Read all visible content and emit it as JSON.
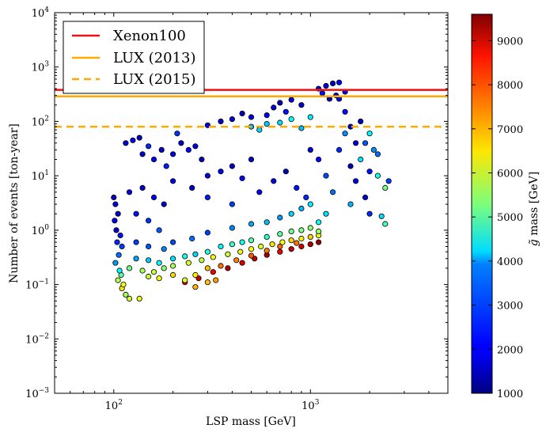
{
  "chart_data": {
    "type": "scatter",
    "title": "",
    "xlabel": "LSP mass [GeV]",
    "ylabel": "Number of events [ton-year]",
    "xscale": "log",
    "yscale": "log",
    "xlim": [
      50,
      5000
    ],
    "ylim": [
      0.001,
      10000
    ],
    "x_ticks": [
      {
        "value": 100,
        "base": "10",
        "exp": "2"
      },
      {
        "value": 1000,
        "base": "10",
        "exp": "3"
      }
    ],
    "y_ticks": [
      {
        "value": 0.001,
        "base": "10",
        "exp": "−3"
      },
      {
        "value": 0.01,
        "base": "10",
        "exp": "−2"
      },
      {
        "value": 0.1,
        "base": "10",
        "exp": "−1"
      },
      {
        "value": 1,
        "base": "10",
        "exp": "0"
      },
      {
        "value": 10,
        "base": "10",
        "exp": "1"
      },
      {
        "value": 100,
        "base": "10",
        "exp": "2"
      },
      {
        "value": 1000,
        "base": "10",
        "exp": "3"
      },
      {
        "value": 10000,
        "base": "10",
        "exp": "4"
      }
    ],
    "limit_lines": [
      {
        "name": "Xenon100",
        "value": 380,
        "color": "#ee1111",
        "style": "solid"
      },
      {
        "name": "LUX (2013)",
        "value": 290,
        "color": "#ffaa00",
        "style": "solid"
      },
      {
        "name": "LUX (2015)",
        "value": 80,
        "color": "#ffaa00",
        "style": "dashed"
      }
    ],
    "legend_location": "upper-left",
    "colorbar": {
      "label_symbol": "g̃",
      "label_rest": " mass [GeV]",
      "min": 1000,
      "max": 9600,
      "ticks": [
        1000,
        2000,
        3000,
        4000,
        5000,
        6000,
        7000,
        8000,
        9000
      ],
      "colormap": "jet"
    },
    "series": [
      {
        "name": "scan points",
        "columns": [
          "lsp_mass_gev",
          "events_ton_year",
          "gluino_mass_gev"
        ],
        "points": [
          [
            1100,
            400,
            1500
          ],
          [
            1200,
            450,
            1800
          ],
          [
            1300,
            500,
            1600
          ],
          [
            1400,
            520,
            2100
          ],
          [
            1350,
            300,
            1700
          ],
          [
            1150,
            330,
            2200
          ],
          [
            1250,
            260,
            1500
          ],
          [
            1500,
            350,
            1900
          ],
          [
            1400,
            260,
            2000
          ],
          [
            900,
            200,
            1600
          ],
          [
            800,
            250,
            1800
          ],
          [
            700,
            220,
            1500
          ],
          [
            750,
            150,
            2200
          ],
          [
            650,
            180,
            1700
          ],
          [
            600,
            130,
            2000
          ],
          [
            500,
            120,
            1800
          ],
          [
            450,
            140,
            1500
          ],
          [
            400,
            110,
            1700
          ],
          [
            350,
            100,
            1600
          ],
          [
            300,
            85,
            1900
          ],
          [
            600,
            90,
            3800
          ],
          [
            700,
            95,
            4000
          ],
          [
            500,
            80,
            3600
          ],
          [
            550,
            70,
            3900
          ],
          [
            800,
            110,
            4200
          ],
          [
            1000,
            120,
            4100
          ],
          [
            900,
            75,
            3700
          ],
          [
            2000,
            60,
            4200
          ],
          [
            2100,
            30,
            3300
          ],
          [
            2200,
            10,
            4400
          ],
          [
            2400,
            6,
            5200
          ],
          [
            2400,
            1.3,
            4800
          ],
          [
            2300,
            1.8,
            3900
          ],
          [
            2500,
            8,
            2600
          ],
          [
            2200,
            25,
            3000
          ],
          [
            1900,
            40,
            2800
          ],
          [
            1800,
            20,
            4000
          ],
          [
            2000,
            12,
            2200
          ],
          [
            1500,
            150,
            2200
          ],
          [
            1600,
            80,
            1600
          ],
          [
            1700,
            40,
            1800
          ],
          [
            1800,
            100,
            1500
          ],
          [
            1500,
            60,
            3300
          ],
          [
            1400,
            30,
            2400
          ],
          [
            1600,
            15,
            1600
          ],
          [
            1700,
            8,
            2000
          ],
          [
            1900,
            4,
            1700
          ],
          [
            2000,
            2,
            2400
          ],
          [
            1300,
            5,
            3000
          ],
          [
            1200,
            10,
            2700
          ],
          [
            1100,
            20,
            2100
          ],
          [
            1000,
            30,
            1800
          ],
          [
            1600,
            3,
            3600
          ],
          [
            1200,
            2,
            4000
          ],
          [
            100,
            4,
            1500
          ],
          [
            102,
            3,
            1800
          ],
          [
            105,
            2,
            1600
          ],
          [
            101,
            1.5,
            2000
          ],
          [
            103,
            1,
            1700
          ],
          [
            108,
            0.8,
            2200
          ],
          [
            110,
            0.5,
            2600
          ],
          [
            104,
            0.6,
            2400
          ],
          [
            106,
            0.35,
            3000
          ],
          [
            102,
            0.25,
            3400
          ],
          [
            107,
            0.18,
            4200
          ],
          [
            109,
            0.15,
            5000
          ],
          [
            105,
            0.12,
            5800
          ],
          [
            112,
            0.1,
            6200
          ],
          [
            110,
            0.085,
            6600
          ],
          [
            115,
            0.065,
            5600
          ],
          [
            120,
            0.055,
            6000
          ],
          [
            135,
            0.055,
            6200
          ],
          [
            120,
            5,
            1800
          ],
          [
            140,
            6,
            1600
          ],
          [
            160,
            4,
            2000
          ],
          [
            180,
            3,
            1700
          ],
          [
            130,
            2,
            2200
          ],
          [
            150,
            1.5,
            2500
          ],
          [
            170,
            1,
            2800
          ],
          [
            200,
            8,
            1900
          ],
          [
            250,
            6,
            1600
          ],
          [
            300,
            10,
            1800
          ],
          [
            350,
            12,
            2000
          ],
          [
            400,
            15,
            1700
          ],
          [
            450,
            9,
            2100
          ],
          [
            500,
            20,
            1600
          ],
          [
            300,
            4,
            2300
          ],
          [
            400,
            3,
            2600
          ],
          [
            550,
            5,
            2000
          ],
          [
            650,
            8,
            1800
          ],
          [
            750,
            12,
            1500
          ],
          [
            850,
            6,
            2200
          ],
          [
            950,
            4,
            2400
          ],
          [
            115,
            40,
            1800
          ],
          [
            125,
            45,
            2100
          ],
          [
            135,
            50,
            1500
          ],
          [
            150,
            35,
            2400
          ],
          [
            140,
            25,
            1700
          ],
          [
            160,
            20,
            2000
          ],
          [
            175,
            30,
            1600
          ],
          [
            185,
            15,
            2300
          ],
          [
            200,
            25,
            1900
          ],
          [
            220,
            40,
            1600
          ],
          [
            240,
            30,
            2100
          ],
          [
            260,
            35,
            1800
          ],
          [
            280,
            20,
            1500
          ],
          [
            210,
            60,
            2500
          ],
          [
            130,
            0.6,
            2600
          ],
          [
            150,
            0.5,
            2800
          ],
          [
            180,
            0.45,
            3200
          ],
          [
            200,
            0.6,
            2700
          ],
          [
            250,
            0.7,
            3000
          ],
          [
            300,
            0.9,
            2600
          ],
          [
            400,
            1.1,
            3200
          ],
          [
            500,
            1.3,
            3500
          ],
          [
            600,
            1.4,
            3700
          ],
          [
            700,
            1.7,
            3400
          ],
          [
            800,
            2,
            3900
          ],
          [
            900,
            2.5,
            3600
          ],
          [
            1000,
            3,
            4100
          ],
          [
            1100,
            1.4,
            4300
          ],
          [
            130,
            0.3,
            3500
          ],
          [
            150,
            0.28,
            3800
          ],
          [
            170,
            0.25,
            4200
          ],
          [
            200,
            0.3,
            4000
          ],
          [
            230,
            0.33,
            4400
          ],
          [
            260,
            0.36,
            3900
          ],
          [
            300,
            0.4,
            4500
          ],
          [
            350,
            0.5,
            4200
          ],
          [
            400,
            0.55,
            4700
          ],
          [
            450,
            0.6,
            4400
          ],
          [
            500,
            0.65,
            4900
          ],
          [
            600,
            0.75,
            4600
          ],
          [
            700,
            0.85,
            5000
          ],
          [
            800,
            0.95,
            5200
          ],
          [
            900,
            1,
            5300
          ],
          [
            1000,
            1.1,
            5400
          ],
          [
            1100,
            0.95,
            5500
          ],
          [
            120,
            0.2,
            5200
          ],
          [
            140,
            0.18,
            5600
          ],
          [
            160,
            0.17,
            5900
          ],
          [
            180,
            0.2,
            5400
          ],
          [
            200,
            0.22,
            5700
          ],
          [
            240,
            0.25,
            6100
          ],
          [
            280,
            0.28,
            5800
          ],
          [
            320,
            0.32,
            6300
          ],
          [
            380,
            0.36,
            6000
          ],
          [
            440,
            0.4,
            6200
          ],
          [
            500,
            0.45,
            6400
          ],
          [
            560,
            0.5,
            6100
          ],
          [
            640,
            0.55,
            6600
          ],
          [
            720,
            0.6,
            6300
          ],
          [
            800,
            0.65,
            6700
          ],
          [
            900,
            0.7,
            6500
          ],
          [
            1000,
            0.75,
            6800
          ],
          [
            1100,
            0.8,
            6200
          ],
          [
            150,
            0.14,
            5900
          ],
          [
            170,
            0.13,
            6300
          ],
          [
            200,
            0.15,
            6700
          ],
          [
            230,
            0.12,
            6100
          ],
          [
            260,
            0.15,
            6500
          ],
          [
            300,
            0.2,
            6900
          ],
          [
            230,
            0.11,
            8700
          ],
          [
            270,
            0.13,
            9000
          ],
          [
            320,
            0.17,
            8600
          ],
          [
            380,
            0.2,
            9200
          ],
          [
            450,
            0.25,
            8800
          ],
          [
            520,
            0.3,
            9100
          ],
          [
            600,
            0.35,
            9300
          ],
          [
            700,
            0.4,
            8700
          ],
          [
            800,
            0.45,
            9000
          ],
          [
            900,
            0.5,
            8900
          ],
          [
            1000,
            0.55,
            9200
          ],
          [
            1100,
            0.6,
            9400
          ],
          [
            350,
            0.22,
            7600
          ],
          [
            420,
            0.28,
            7400
          ],
          [
            500,
            0.34,
            7800
          ],
          [
            600,
            0.42,
            7500
          ],
          [
            700,
            0.5,
            7700
          ],
          [
            850,
            0.58,
            7600
          ],
          [
            260,
            0.09,
            7000
          ],
          [
            300,
            0.11,
            6900
          ],
          [
            330,
            0.12,
            7200
          ]
        ]
      }
    ]
  }
}
